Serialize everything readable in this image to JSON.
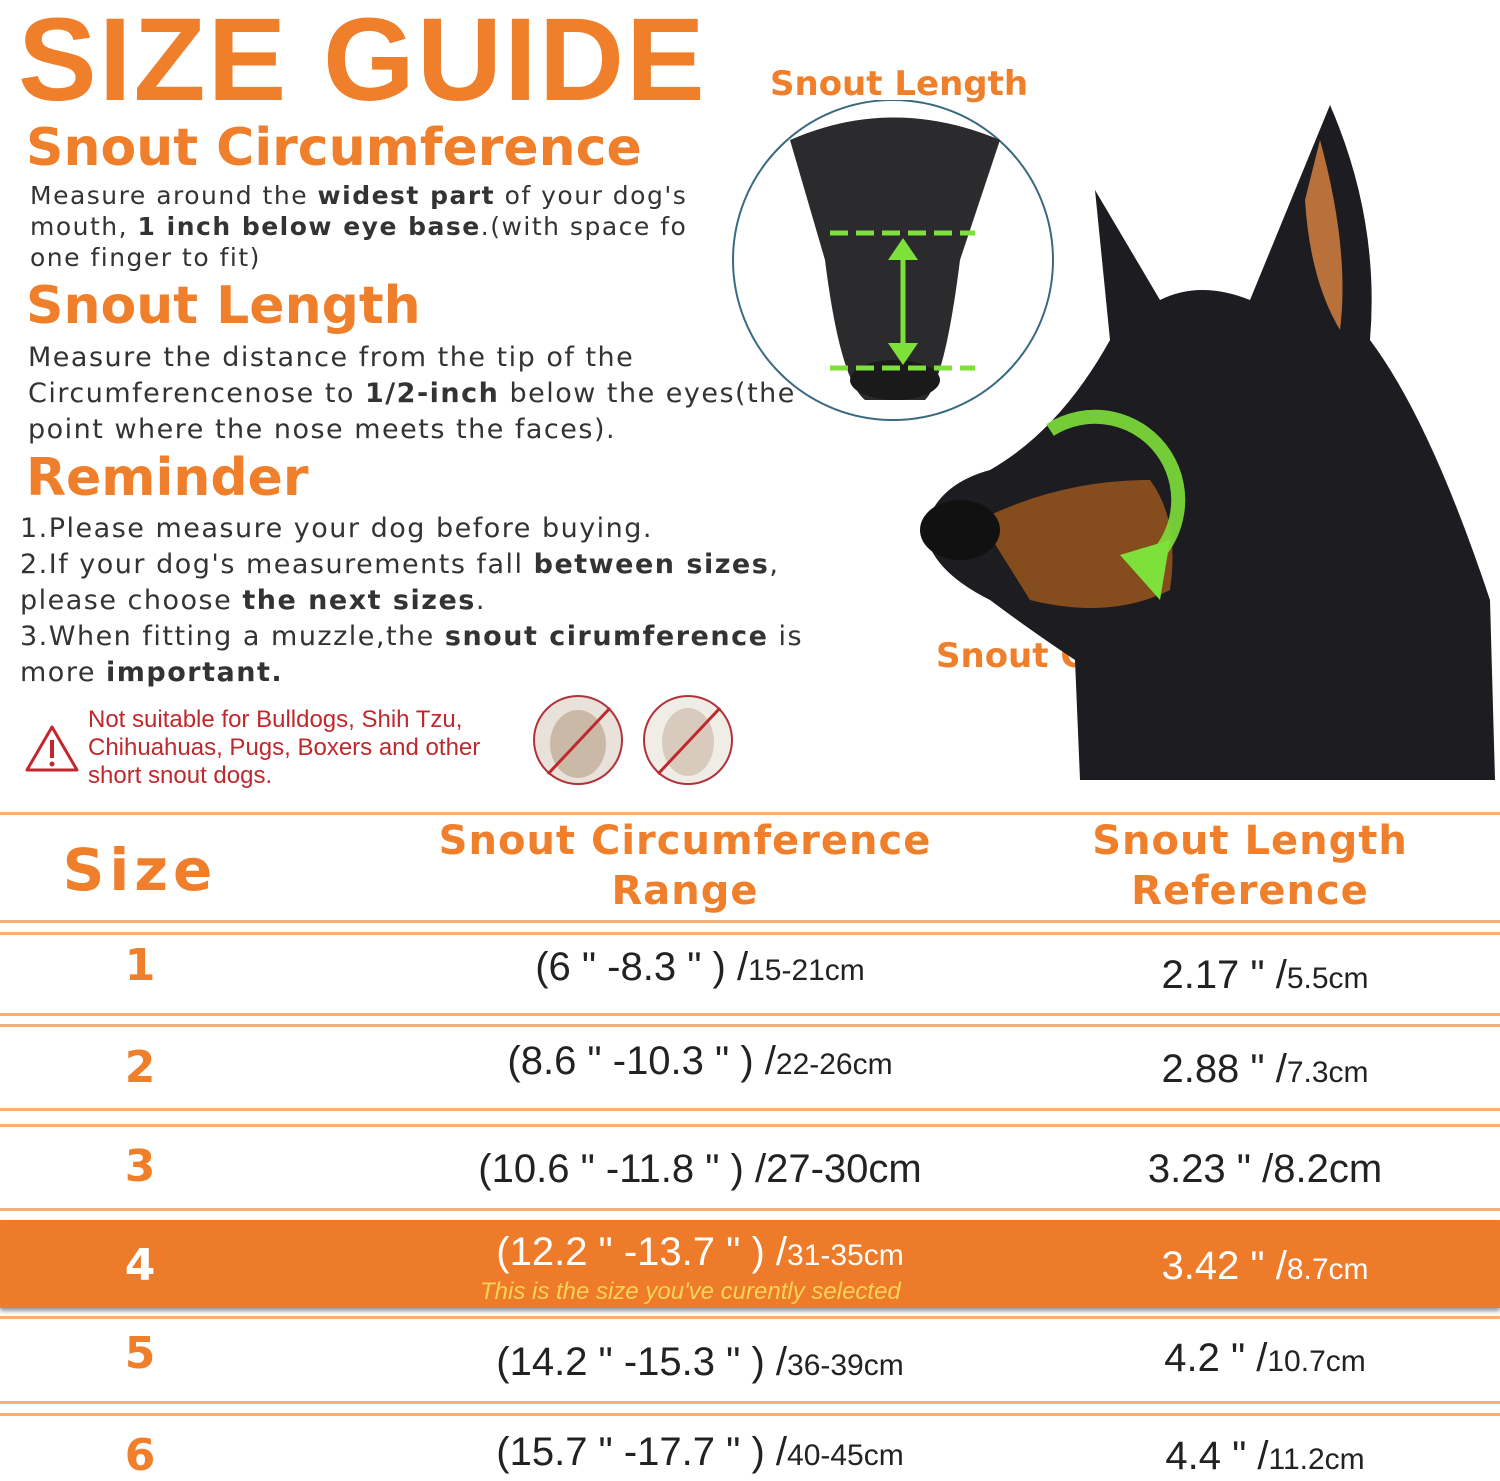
{
  "title": "SIZE GUIDE",
  "snout_circumference": {
    "heading": "Snout  Circumference",
    "text": [
      "Measure around the ",
      "widest part",
      " of your dog's mouth, ",
      "1 inch below eye base",
      ".(with space fo one finger to fit)"
    ]
  },
  "snout_length": {
    "heading": "Snout  Length",
    "text": [
      "Measure the distance from the tip of the Circumferencenose to ",
      "1/2-inch",
      " below the eyes(the point where the nose meets the faces)."
    ]
  },
  "reminder": {
    "heading": "Reminder",
    "items": [
      [
        "1.Please measure your dog before buying."
      ],
      [
        "2.If your dog's measurements fall ",
        "between sizes",
        ", please choose ",
        "the next sizes",
        "."
      ],
      [
        "3.When fitting a muzzle,the ",
        "snout cirumference",
        " is more ",
        "important."
      ]
    ]
  },
  "warning": "Not suitable for Bulldogs, Shih Tzu, Chihuahuas, Pugs, Boxers and other short snout dogs.",
  "image_labels": {
    "snout_length": "Snout  Length",
    "snout_cir": "Snout  Cir"
  },
  "table": {
    "headers": [
      "Size",
      "Snout Circumference Range",
      "Snout Length Reference"
    ],
    "selected_note": "This is the size you've curently selected",
    "rows": [
      {
        "size": "1",
        "circ": "(6 \" -8.3 \" )  /",
        "circ_cm": "15-21cm",
        "len": "2.17 \" /",
        "len_cm": "5.5cm"
      },
      {
        "size": "2",
        "circ": "(8.6 \" -10.3 \" )  /",
        "circ_cm": "22-26cm",
        "len": "2.88 \" /",
        "len_cm": "7.3cm"
      },
      {
        "size": "3",
        "circ": "(10.6 \" -11.8 \" )  /",
        "circ_cm": "27-30cm",
        "len": "3.23 \" /",
        "len_cm": "8.2cm"
      },
      {
        "size": "4",
        "circ": "(12.2 \" -13.7 \" )  /",
        "circ_cm": "31-35cm",
        "len": "3.42 \" /",
        "len_cm": "8.7cm",
        "selected": true
      },
      {
        "size": "5",
        "circ": "(14.2 \" -15.3 \" )  /",
        "circ_cm": "36-39cm",
        "len": "4.2 \" /",
        "len_cm": "10.7cm"
      },
      {
        "size": "6",
        "circ": "(15.7 \" -17.7 \" )  /",
        "circ_cm": "40-45cm",
        "len": "4.4 \" /",
        "len_cm": "11.2cm"
      }
    ]
  },
  "colors": {
    "accent": "#ef7f2b",
    "warning": "#c0282d",
    "measure_line": "#7ee03a"
  }
}
